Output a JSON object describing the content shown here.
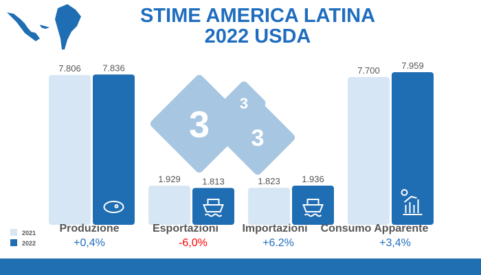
{
  "title_line1": "STIME AMERICA LATINA",
  "title_line2": "2022 USDA",
  "colors": {
    "y2021": "#d6e6f4",
    "y2022": "#1f6db3",
    "positive": "#1f6dbf",
    "negative": "#ff0000",
    "watermark": "#a7c6e2"
  },
  "chart_data": {
    "type": "bar",
    "categories": [
      "Produzione",
      "Esportazioni",
      "Importazioni",
      "Consumo Apparente"
    ],
    "series": [
      {
        "name": "2021",
        "values": [
          7806,
          1929,
          1823,
          7700
        ]
      },
      {
        "name": "2022",
        "values": [
          7836,
          1813,
          1936,
          7959
        ]
      }
    ],
    "value_labels": [
      [
        "7.806",
        "7.836"
      ],
      [
        "1.929",
        "1.813"
      ],
      [
        "1.823",
        "1.936"
      ],
      [
        "7.700",
        "7.959"
      ]
    ],
    "changes": [
      "+0,4%",
      "-6,0%",
      "+6.2%",
      "+3,4%"
    ],
    "icons": [
      "meat-icon",
      "ship-icon",
      "ship-icon",
      "food-consumption-icon"
    ],
    "legend_position": "bottom-left",
    "ylim": [
      0,
      7959
    ]
  },
  "watermark": [
    "3",
    "3",
    "3"
  ]
}
